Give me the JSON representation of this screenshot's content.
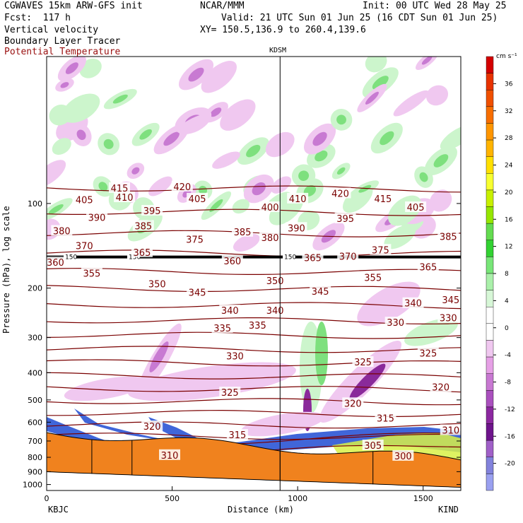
{
  "header": {
    "model": "CGWAVES 15km ARW-GFS init",
    "org": "NCAR/MMM",
    "init": "Init: 00 UTC Wed 28 May 25",
    "fcst": "Fcst:  117 h",
    "valid": "Valid: 21 UTC Sun 01 Jun 25 (16 CDT Sun 01 Jun 25)",
    "field1": "Vertical velocity",
    "xy": "XY= 150.5,136.9 to 260.4,139.6",
    "field2": "Boundary Layer Tracer",
    "field3": "Potential Temperature"
  },
  "colors": {
    "theta_line": "#7a0000",
    "terrain": "#f0821e",
    "ascent_light": "#ccf5cc",
    "ascent": "#7ee07e",
    "descent_light": "#f0c8f0",
    "descent": "#c87ad2",
    "descent_strong": "#8a2a9a",
    "tracer": "#1e4bd2"
  },
  "chart_data": {
    "type": "cross-section",
    "title": "KDSM",
    "xlabel": "Distance (km)",
    "ylabel": "Pressure (hPa), log scale",
    "xlim": [
      0,
      1650
    ],
    "ylim": [
      1050,
      30
    ],
    "x_ticks": [
      "0",
      "500",
      "1000",
      "1500"
    ],
    "x_tick_values": [
      0,
      500,
      1000,
      1500
    ],
    "y_ticks": [
      "100",
      "200",
      "300",
      "400",
      "500",
      "600",
      "700",
      "800",
      "900",
      "1000"
    ],
    "y_tick_values": [
      100,
      200,
      300,
      400,
      500,
      600,
      700,
      800,
      900,
      1000
    ],
    "left_station": "KBJC",
    "right_station": "KIND",
    "marker_station_km": 930,
    "tropopause_hpa": 155,
    "tropopause_labels": [
      "150",
      "150",
      "150"
    ],
    "colorbar": {
      "unit": "cm s⁻¹",
      "labels": [
        "36",
        "32",
        "28",
        "24",
        "20",
        "16",
        "12",
        "8",
        "4",
        "0",
        "-4",
        "-8",
        "-12",
        "-16",
        "-20"
      ],
      "values": [
        36,
        32,
        28,
        24,
        20,
        16,
        12,
        8,
        4,
        0,
        -4,
        -8,
        -12,
        -16,
        -20
      ],
      "colors": [
        "#d40000",
        "#e83200",
        "#f05000",
        "#f86e00",
        "#ff9600",
        "#ffb400",
        "#ffe000",
        "#f8ff30",
        "#c8f000",
        "#96e600",
        "#64dc50",
        "#32d232",
        "#78e678",
        "#aaf0aa",
        "#d7f7d7",
        "#ffffff",
        "#ffffff",
        "#f0c8f0",
        "#e6a0e6",
        "#c878d2",
        "#aa50be",
        "#8c28a0",
        "#6e148c",
        "#a060c8",
        "#8282dc",
        "#9aa0f0"
      ]
    },
    "theta_labels": [
      {
        "x": 150,
        "p": 97,
        "text": "405"
      },
      {
        "x": 310,
        "p": 95,
        "text": "410"
      },
      {
        "x": 600,
        "p": 96,
        "text": "405"
      },
      {
        "x": 1000,
        "p": 96,
        "text": "410"
      },
      {
        "x": 1470,
        "p": 103,
        "text": "405"
      },
      {
        "x": 290,
        "p": 88,
        "text": "415"
      },
      {
        "x": 540,
        "p": 87,
        "text": "420"
      },
      {
        "x": 1170,
        "p": 92,
        "text": "420"
      },
      {
        "x": 1340,
        "p": 96,
        "text": "415"
      },
      {
        "x": 420,
        "p": 106,
        "text": "395"
      },
      {
        "x": 890,
        "p": 103,
        "text": "400"
      },
      {
        "x": 1190,
        "p": 113,
        "text": "395"
      },
      {
        "x": 200,
        "p": 112,
        "text": "390"
      },
      {
        "x": 995,
        "p": 122,
        "text": "390"
      },
      {
        "x": 60,
        "p": 125,
        "text": "380"
      },
      {
        "x": 385,
        "p": 120,
        "text": "385"
      },
      {
        "x": 780,
        "p": 126,
        "text": "385"
      },
      {
        "x": 1600,
        "p": 131,
        "text": "385"
      },
      {
        "x": 150,
        "p": 141,
        "text": "370"
      },
      {
        "x": 590,
        "p": 134,
        "text": "375"
      },
      {
        "x": 890,
        "p": 132,
        "text": "380"
      },
      {
        "x": 1330,
        "p": 146,
        "text": "375"
      },
      {
        "x": 1200,
        "p": 154,
        "text": "370"
      },
      {
        "x": 35,
        "p": 162,
        "text": "360"
      },
      {
        "x": 380,
        "p": 149,
        "text": "365"
      },
      {
        "x": 740,
        "p": 160,
        "text": "360"
      },
      {
        "x": 1060,
        "p": 156,
        "text": "365"
      },
      {
        "x": 1520,
        "p": 168,
        "text": "365"
      },
      {
        "x": 180,
        "p": 177,
        "text": "355"
      },
      {
        "x": 1300,
        "p": 183,
        "text": "355"
      },
      {
        "x": 440,
        "p": 193,
        "text": "350"
      },
      {
        "x": 910,
        "p": 188,
        "text": "350"
      },
      {
        "x": 600,
        "p": 207,
        "text": "345"
      },
      {
        "x": 1090,
        "p": 205,
        "text": "345"
      },
      {
        "x": 1610,
        "p": 220,
        "text": "345"
      },
      {
        "x": 730,
        "p": 240,
        "text": "340"
      },
      {
        "x": 910,
        "p": 240,
        "text": "340"
      },
      {
        "x": 1460,
        "p": 226,
        "text": "340"
      },
      {
        "x": 700,
        "p": 277,
        "text": "335"
      },
      {
        "x": 840,
        "p": 271,
        "text": "335"
      },
      {
        "x": 1390,
        "p": 265,
        "text": "330"
      },
      {
        "x": 1600,
        "p": 255,
        "text": "330"
      },
      {
        "x": 750,
        "p": 348,
        "text": "330"
      },
      {
        "x": 1260,
        "p": 366,
        "text": "325"
      },
      {
        "x": 1520,
        "p": 340,
        "text": "325"
      },
      {
        "x": 730,
        "p": 470,
        "text": "325"
      },
      {
        "x": 1220,
        "p": 513,
        "text": "320"
      },
      {
        "x": 1570,
        "p": 450,
        "text": "320"
      },
      {
        "x": 420,
        "p": 620,
        "text": "320"
      },
      {
        "x": 1350,
        "p": 580,
        "text": "315"
      },
      {
        "x": 760,
        "p": 665,
        "text": "315"
      },
      {
        "x": 1610,
        "p": 640,
        "text": "310"
      },
      {
        "x": 1300,
        "p": 725,
        "text": "305"
      },
      {
        "x": 490,
        "p": 785,
        "text": "310"
      },
      {
        "x": 1420,
        "p": 790,
        "text": "300"
      }
    ]
  }
}
